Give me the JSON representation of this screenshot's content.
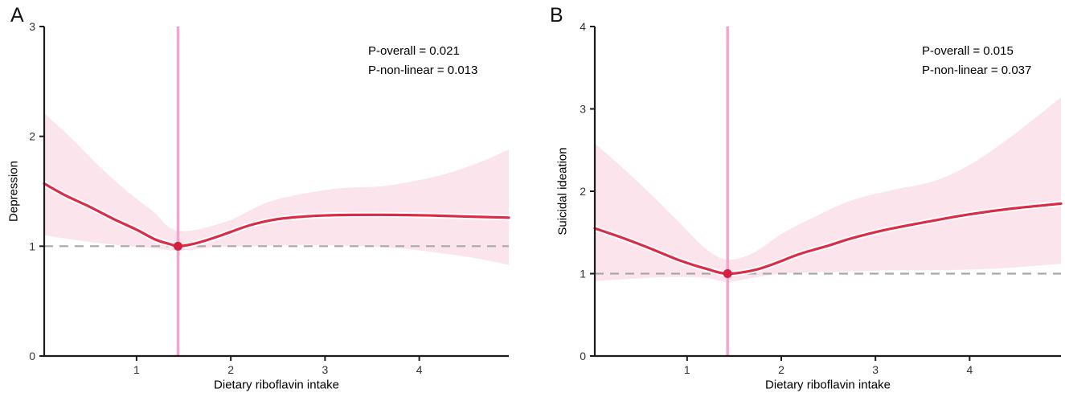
{
  "colors": {
    "curve": "#DC2B46",
    "dot": "#D5213F",
    "band": "#FBE4EB",
    "vline": "#F6A3CF",
    "reference_line": "#A8A8A8",
    "axis": "#1B1B1B",
    "tick_text": "#333333",
    "curve_halo": "#FFFFFF"
  },
  "chart_data": [
    {
      "id": "A",
      "type": "line",
      "panel_label": "A",
      "xlabel": "Dietary riboflavin intake",
      "ylabel": "Depression",
      "xlim": [
        0.02,
        4.95
      ],
      "ylim": [
        0,
        3
      ],
      "xticks": [
        1,
        2,
        3,
        4
      ],
      "yticks": [
        0,
        1,
        2,
        3
      ],
      "grid": false,
      "legend": "none",
      "p_overall": "P-overall = 0.021",
      "p_nonlinear": "P-non-linear = 0.013",
      "reference_line_y": 1,
      "vline_x": 1.44,
      "dot": [
        1.44,
        1.0
      ],
      "curve": [
        [
          0.02,
          1.57
        ],
        [
          0.25,
          1.46
        ],
        [
          0.5,
          1.36
        ],
        [
          0.75,
          1.25
        ],
        [
          1.0,
          1.15
        ],
        [
          1.2,
          1.06
        ],
        [
          1.35,
          1.02
        ],
        [
          1.44,
          1.0
        ],
        [
          1.6,
          1.02
        ],
        [
          1.8,
          1.07
        ],
        [
          2.0,
          1.13
        ],
        [
          2.2,
          1.19
        ],
        [
          2.45,
          1.24
        ],
        [
          2.7,
          1.265
        ],
        [
          3.0,
          1.28
        ],
        [
          3.3,
          1.285
        ],
        [
          3.7,
          1.285
        ],
        [
          4.1,
          1.28
        ],
        [
          4.5,
          1.27
        ],
        [
          4.95,
          1.26
        ]
      ],
      "band_upper": [
        [
          0.02,
          2.21
        ],
        [
          0.3,
          1.99
        ],
        [
          0.6,
          1.73
        ],
        [
          0.9,
          1.5
        ],
        [
          1.17,
          1.32
        ],
        [
          1.44,
          1.14
        ],
        [
          1.94,
          1.22
        ],
        [
          2.43,
          1.41
        ],
        [
          3.08,
          1.52
        ],
        [
          3.65,
          1.55
        ],
        [
          4.2,
          1.64
        ],
        [
          4.6,
          1.75
        ],
        [
          4.95,
          1.88
        ]
      ],
      "band_lower": [
        [
          0.02,
          1.1
        ],
        [
          0.4,
          1.05
        ],
        [
          0.8,
          1.01
        ],
        [
          1.1,
          0.99
        ],
        [
          1.44,
          0.96
        ],
        [
          1.8,
          0.99
        ],
        [
          2.2,
          1.0
        ],
        [
          2.6,
          1.01
        ],
        [
          3.0,
          1.01
        ],
        [
          3.4,
          1.0
        ],
        [
          3.8,
          0.98
        ],
        [
          4.2,
          0.94
        ],
        [
          4.6,
          0.89
        ],
        [
          4.95,
          0.83
        ]
      ]
    },
    {
      "id": "B",
      "type": "line",
      "panel_label": "B",
      "xlabel": "Dietary riboflavin intake",
      "ylabel": "Suicidal ideation",
      "xlim": [
        0.02,
        4.97
      ],
      "ylim": [
        0,
        4
      ],
      "xticks": [
        1,
        2,
        3,
        4
      ],
      "yticks": [
        0,
        1,
        2,
        3,
        4
      ],
      "grid": false,
      "legend": "none",
      "p_overall": "P-overall = 0.015",
      "p_nonlinear": "P-non-linear = 0.037",
      "reference_line_y": 1,
      "vline_x": 1.43,
      "dot": [
        1.43,
        1.0
      ],
      "curve": [
        [
          0.02,
          1.55
        ],
        [
          0.3,
          1.44
        ],
        [
          0.6,
          1.31
        ],
        [
          0.9,
          1.17
        ],
        [
          1.2,
          1.06
        ],
        [
          1.43,
          1.0
        ],
        [
          1.7,
          1.04
        ],
        [
          1.9,
          1.11
        ],
        [
          2.2,
          1.24
        ],
        [
          2.5,
          1.34
        ],
        [
          2.75,
          1.43
        ],
        [
          3.1,
          1.53
        ],
        [
          3.6,
          1.64
        ],
        [
          4.0,
          1.72
        ],
        [
          4.45,
          1.79
        ],
        [
          4.97,
          1.85
        ]
      ],
      "band_upper": [
        [
          0.02,
          2.58
        ],
        [
          0.3,
          2.3
        ],
        [
          0.6,
          1.98
        ],
        [
          0.9,
          1.64
        ],
        [
          1.2,
          1.3
        ],
        [
          1.43,
          1.17
        ],
        [
          1.7,
          1.25
        ],
        [
          2.0,
          1.48
        ],
        [
          2.32,
          1.67
        ],
        [
          2.75,
          1.89
        ],
        [
          3.2,
          2.02
        ],
        [
          3.61,
          2.12
        ],
        [
          4.0,
          2.32
        ],
        [
          4.46,
          2.68
        ],
        [
          4.97,
          3.14
        ]
      ],
      "band_lower": [
        [
          0.02,
          0.91
        ],
        [
          0.3,
          0.93
        ],
        [
          0.6,
          0.95
        ],
        [
          0.9,
          0.96
        ],
        [
          1.2,
          0.95
        ],
        [
          1.43,
          0.9
        ],
        [
          1.7,
          0.95
        ],
        [
          2.0,
          1.0
        ],
        [
          2.4,
          1.02
        ],
        [
          2.8,
          1.03
        ],
        [
          3.2,
          1.04
        ],
        [
          3.6,
          1.04
        ],
        [
          4.0,
          1.05
        ],
        [
          4.4,
          1.07
        ],
        [
          4.97,
          1.12
        ]
      ]
    }
  ]
}
